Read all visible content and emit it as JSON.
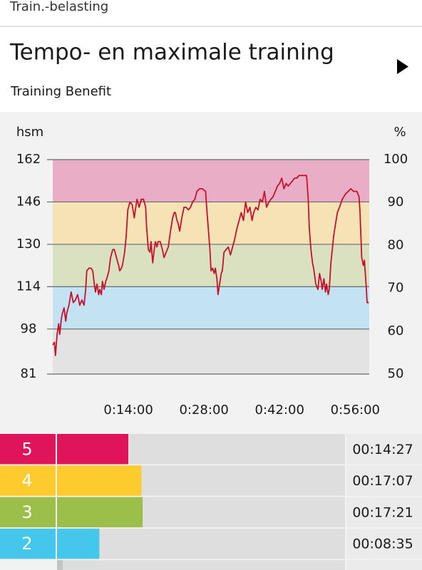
{
  "header": {
    "section": "Train.-belasting",
    "title": "Tempo- en maximale training",
    "subtitle": "Training Benefit"
  },
  "chart_data": {
    "type": "line",
    "y_label": "hsm",
    "y2_label": "%",
    "x": [
      0.0,
      0.3,
      0.5,
      0.8,
      1.1,
      1.3,
      1.6,
      1.8,
      2.1,
      2.4,
      2.6,
      3.0,
      3.4,
      3.8,
      4.2,
      4.6,
      5.0,
      5.4,
      5.8,
      6.1,
      6.3,
      6.7,
      7.1,
      7.4,
      7.7,
      7.9,
      8.2,
      8.5,
      8.7,
      9.0,
      9.2,
      9.5,
      9.8,
      10.0,
      10.4,
      10.7,
      11.1,
      11.4,
      11.8,
      12.2,
      12.4,
      12.7,
      12.9,
      13.3,
      13.6,
      13.9,
      14.3,
      14.7,
      15.1,
      15.3,
      15.6,
      16.0,
      16.4,
      16.8,
      17.2,
      17.4,
      17.7,
      18.0,
      18.2,
      18.5,
      18.8,
      19.0,
      19.3,
      19.5,
      19.9,
      20.3,
      20.6,
      21.0,
      21.4,
      21.8,
      22.2,
      22.5,
      22.7,
      23.0,
      23.2,
      23.5,
      23.9,
      24.3,
      24.7,
      25.1,
      25.5,
      25.9,
      26.3,
      26.7,
      27.2,
      27.7,
      28.3,
      28.5,
      28.8,
      29.1,
      29.3,
      29.6,
      29.9,
      30.1,
      30.4,
      30.6,
      30.9,
      31.2,
      31.4,
      31.7,
      32.1,
      32.5,
      32.9,
      33.3,
      33.7,
      34.1,
      34.5,
      34.9,
      35.3,
      35.7,
      36.1,
      36.5,
      36.9,
      37.2,
      37.6,
      38.0,
      38.4,
      38.8,
      39.2,
      39.6,
      40.0,
      40.4,
      40.8,
      41.2,
      41.6,
      42.0,
      42.4,
      42.8,
      43.2,
      43.6,
      44.0,
      44.4,
      44.8,
      45.2,
      45.6,
      46.0,
      46.5,
      47.0,
      47.3,
      47.5,
      47.8,
      48.1,
      48.3,
      48.7,
      49.1,
      49.4,
      49.7,
      49.9,
      50.2,
      50.5,
      50.7,
      51.0,
      51.2,
      51.5,
      51.8,
      52.0,
      52.3,
      52.7,
      53.1,
      53.6,
      54.2,
      54.7,
      55.2,
      55.7,
      56.3,
      56.7,
      56.9,
      57.2,
      57.5,
      57.7,
      58.0,
      58.2,
      58.5
    ],
    "series": [
      {
        "color": "#c8102e",
        "values": [
          92,
          93,
          88,
          96,
          100,
          96,
          102,
          104,
          106,
          101,
          104,
          107,
          112,
          108,
          109,
          111,
          107,
          109,
          107,
          113,
          120,
          121,
          121,
          120,
          115,
          112,
          115,
          111,
          113,
          111,
          116,
          113,
          116,
          117,
          120,
          125,
          128,
          128,
          125,
          122,
          120,
          121,
          122,
          127,
          133,
          143,
          146,
          145,
          140,
          143,
          147,
          144,
          147,
          147,
          144,
          136,
          128,
          127,
          131,
          123,
          128,
          131,
          129,
          131,
          131,
          128,
          125,
          127,
          129,
          135,
          140,
          142,
          142,
          139,
          138,
          135,
          140,
          144,
          144,
          143,
          144,
          146,
          147,
          150,
          151,
          151,
          150,
          144,
          136,
          128,
          120,
          121,
          119,
          121,
          117,
          111,
          115,
          119,
          120,
          127,
          128,
          129,
          126,
          129,
          132,
          136,
          139,
          142,
          139,
          146,
          142,
          144,
          139,
          142,
          144,
          143,
          147,
          146,
          150,
          144,
          146,
          147,
          148,
          150,
          152,
          153,
          155,
          151,
          153,
          152,
          153,
          154,
          155,
          155,
          156,
          156,
          156,
          156,
          147,
          136,
          128,
          123,
          121,
          115,
          113,
          119,
          116,
          113,
          117,
          112,
          115,
          111,
          113,
          123,
          129,
          133,
          137,
          142,
          144,
          147,
          149,
          150,
          151,
          150,
          150,
          148,
          142,
          125,
          122,
          124,
          115,
          108,
          108
        ]
      }
    ],
    "xlim": [
      0,
      58.6
    ],
    "xticks": [
      {
        "value": 14,
        "label": "0:14:00"
      },
      {
        "value": 28,
        "label": "0:28:00"
      },
      {
        "value": 42,
        "label": "0:42:00"
      },
      {
        "value": 56,
        "label": "0:56:00"
      }
    ],
    "ylim": [
      81,
      162
    ],
    "yticks": [
      81,
      98,
      114,
      130,
      146,
      162
    ],
    "y2lim": [
      50,
      100
    ],
    "y2ticks": [
      50,
      60,
      70,
      80,
      90,
      100
    ],
    "zone_colors": [
      "#e3e3e3",
      "#c3e3f3",
      "#d9e1c1",
      "#f5e3b5",
      "#e9aec6"
    ],
    "grid": true
  },
  "zones": [
    {
      "label": "5",
      "time": "00:14:27",
      "seconds": 867,
      "color": "#e0145a"
    },
    {
      "label": "4",
      "time": "00:17:07",
      "seconds": 1027,
      "color": "#fecb2f"
    },
    {
      "label": "3",
      "time": "00:17:21",
      "seconds": 1041,
      "color": "#9cbf4a"
    },
    {
      "label": "2",
      "time": "00:08:35",
      "seconds": 515,
      "color": "#45c7ec"
    },
    {
      "label": null,
      "time": null,
      "seconds": 70,
      "color": "#c4c4c4"
    }
  ]
}
